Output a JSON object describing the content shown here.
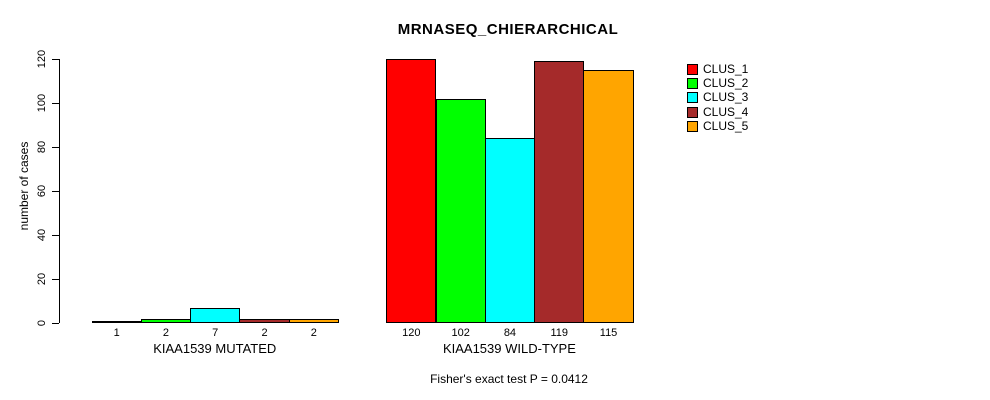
{
  "title": "MRNASEQ_CHIERARCHICAL",
  "caption": "Fisher's exact test P = 0.0412",
  "chart_data": {
    "type": "bar",
    "title": "MRNASEQ_CHIERARCHICAL",
    "xlabel": "",
    "ylabel": "number of cases",
    "ylim": [
      0,
      120
    ],
    "yticks": [
      0,
      20,
      40,
      60,
      80,
      100,
      120
    ],
    "grid": false,
    "legend_position": "right",
    "bar_value_labels_shown": true,
    "categories": [
      "KIAA1539 MUTATED",
      "KIAA1539 WILD-TYPE"
    ],
    "series": [
      {
        "name": "CLUS_1",
        "color": "#FF0000",
        "values": [
          1,
          120
        ]
      },
      {
        "name": "CLUS_2",
        "color": "#00FF00",
        "values": [
          2,
          102
        ]
      },
      {
        "name": "CLUS_3",
        "color": "#00FFFF",
        "values": [
          7,
          84
        ]
      },
      {
        "name": "CLUS_4",
        "color": "#A52A2A",
        "values": [
          2,
          119
        ]
      },
      {
        "name": "CLUS_5",
        "color": "#FFA500",
        "values": [
          2,
          115
        ]
      }
    ],
    "caption": "Fisher's exact test P = 0.0412"
  },
  "colors": {
    "axis": "#000000",
    "text": "#000000",
    "background": "#FFFFFF"
  }
}
